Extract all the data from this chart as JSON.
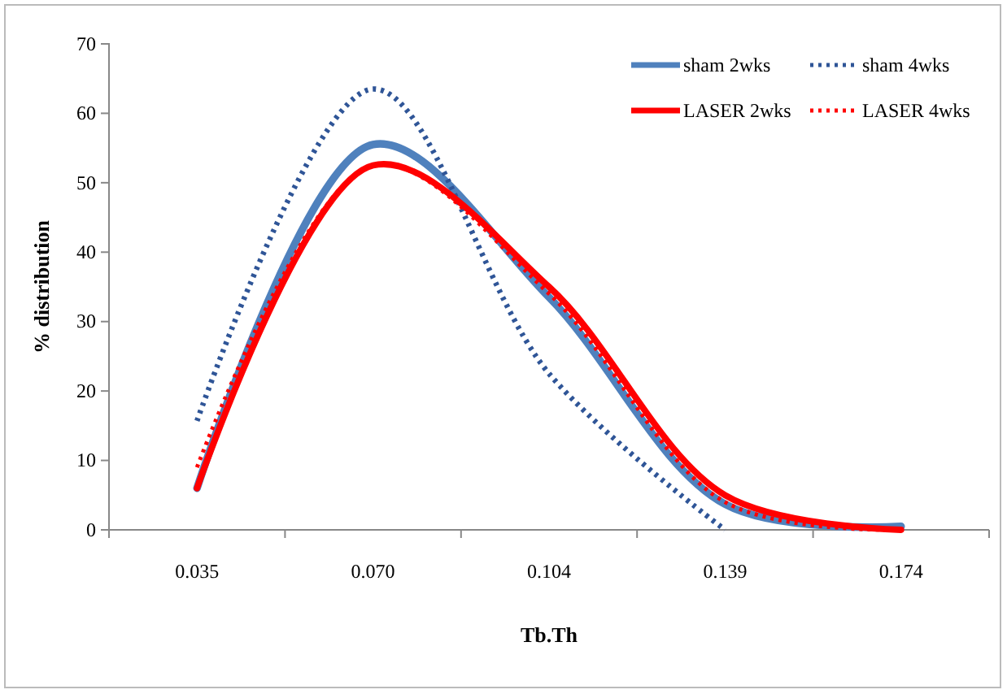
{
  "chart_data": {
    "type": "line",
    "xlabel": "Tb.Th",
    "ylabel": "% distribution",
    "categories": [
      "0.035",
      "0.070",
      "0.104",
      "0.139",
      "0.174"
    ],
    "ylim": [
      0,
      70
    ],
    "yticks": [
      0,
      10,
      20,
      30,
      40,
      50,
      60,
      70
    ],
    "grid": false,
    "legend": "top right",
    "series": [
      {
        "name": "sham 2wks",
        "color": "#4f81bd",
        "line_style": "solid",
        "values": [
          6,
          55.5,
          33.5,
          3.7,
          0.5
        ]
      },
      {
        "name": "sham 4wks",
        "color": "#2f5597",
        "line_style": "dotted",
        "values": [
          15.7,
          63.5,
          22.5,
          0,
          null
        ]
      },
      {
        "name": "LASER 2wks",
        "color": "#ff0000",
        "line_style": "solid",
        "values": [
          6,
          52.5,
          35,
          5,
          0
        ]
      },
      {
        "name": "LASER 4wks",
        "color": "#ff0000",
        "line_style": "dotted",
        "values": [
          9,
          52.5,
          34,
          4,
          0
        ]
      }
    ]
  }
}
